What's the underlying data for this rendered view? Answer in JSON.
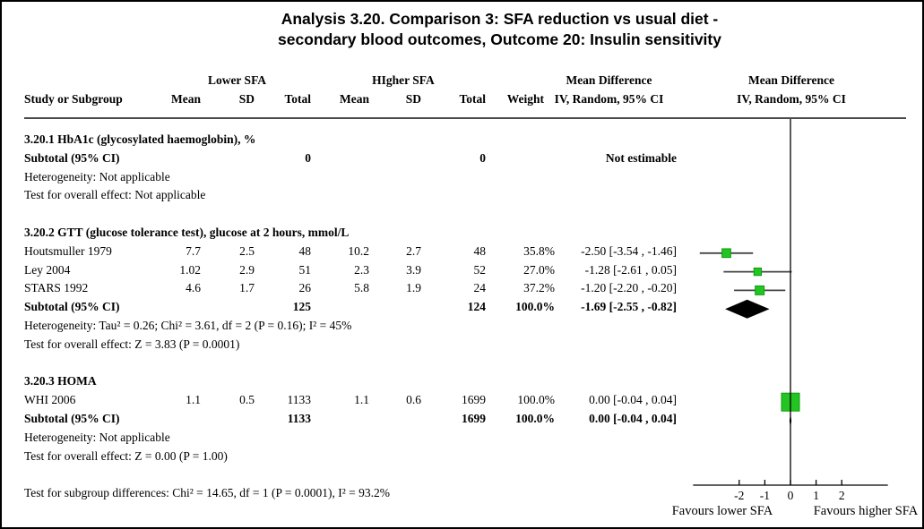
{
  "title": {
    "line1": "Analysis 3.20.   Comparison 3: SFA reduction vs usual diet -",
    "line2": "secondary blood outcomes, Outcome 20: Insulin sensitivity"
  },
  "header": {
    "group1": "Lower SFA",
    "group2": "HIgher SFA",
    "mean_diff_stats": "Mean Difference",
    "mean_diff_plot": "Mean Difference",
    "study": "Study or Subgroup",
    "mean1": "Mean",
    "sd1": "SD",
    "total1": "Total",
    "mean2": "Mean",
    "sd2": "SD",
    "total2": "Total",
    "weight": "Weight",
    "iv_random_stats": "IV, Random, 95% CI",
    "iv_random_plot": "IV, Random, 95% CI"
  },
  "colors": {
    "square_fill": "#22C522",
    "square_border": "#0E9B0E",
    "diamond": "#000000",
    "whisker": "#454545",
    "axis": "#000000"
  },
  "chart_data": {
    "type": "forest",
    "effect_label": "Mean Difference",
    "method_label": "IV, Random, 95% CI",
    "x_axis": {
      "ticks": [
        -2,
        -1,
        0,
        1,
        2
      ],
      "range": [
        -3.8,
        3.8
      ],
      "favours_left": "Favours lower SFA",
      "favours_right": "Favours higher SFA"
    },
    "rows": [
      {
        "type": "section",
        "text": "3.20.1 HbA1c (glycosylated haemoglobin), %"
      },
      {
        "type": "subtotal",
        "study": "Subtotal (95% CI)",
        "t1": "0",
        "t2": "0",
        "ci": "Not estimable"
      },
      {
        "type": "note",
        "text": "Heterogeneity: Not applicable"
      },
      {
        "type": "note",
        "text": "Test for overall effect: Not applicable"
      },
      {
        "type": "spacer"
      },
      {
        "type": "section",
        "text": "3.20.2 GTT (glucose tolerance test), glucose at 2 hours, mmol/L"
      },
      {
        "type": "study",
        "study": "Houtsmuller 1979",
        "m1": "7.7",
        "sd1": "2.5",
        "t1": "48",
        "m2": "10.2",
        "sd2": "2.7",
        "t2": "48",
        "w": "35.8%",
        "ci": "-2.50 [-3.54 , -1.46]",
        "plot": {
          "kind": "square",
          "est": -2.5,
          "lo": -3.54,
          "hi": -1.46,
          "weight_pct": 35.8
        }
      },
      {
        "type": "study",
        "study": "Ley 2004",
        "m1": "1.02",
        "sd1": "2.9",
        "t1": "51",
        "m2": "2.3",
        "sd2": "3.9",
        "t2": "52",
        "w": "27.0%",
        "ci": "-1.28 [-2.61 , 0.05]",
        "plot": {
          "kind": "square",
          "est": -1.28,
          "lo": -2.61,
          "hi": 0.05,
          "weight_pct": 27.0
        }
      },
      {
        "type": "study",
        "study": "STARS 1992",
        "m1": "4.6",
        "sd1": "1.7",
        "t1": "26",
        "m2": "5.8",
        "sd2": "1.9",
        "t2": "24",
        "w": "37.2%",
        "ci": "-1.20 [-2.20 , -0.20]",
        "plot": {
          "kind": "square",
          "est": -1.2,
          "lo": -2.2,
          "hi": -0.2,
          "weight_pct": 37.2
        }
      },
      {
        "type": "subtotal",
        "study": "Subtotal (95% CI)",
        "t1": "125",
        "t2": "124",
        "w": "100.0%",
        "ci": "-1.69 [-2.55 , -0.82]",
        "plot": {
          "kind": "diamond",
          "est": -1.69,
          "lo": -2.55,
          "hi": -0.82
        }
      },
      {
        "type": "note",
        "text": "Heterogeneity: Tau² = 0.26; Chi² = 3.61, df = 2 (P = 0.16); I² = 45%"
      },
      {
        "type": "note",
        "text": "Test for overall effect: Z = 3.83 (P = 0.0001)"
      },
      {
        "type": "spacer"
      },
      {
        "type": "section",
        "text": "3.20.3 HOMA"
      },
      {
        "type": "study",
        "study": "WHI 2006",
        "m1": "1.1",
        "sd1": "0.5",
        "t1": "1133",
        "m2": "1.1",
        "sd2": "0.6",
        "t2": "1699",
        "w": "100.0%",
        "ci": "0.00 [-0.04 , 0.04]",
        "plot": {
          "kind": "square",
          "est": 0.0,
          "lo": -0.04,
          "hi": 0.04,
          "weight_pct": 100.0
        }
      },
      {
        "type": "subtotal",
        "study": "Subtotal (95% CI)",
        "t1": "1133",
        "t2": "1699",
        "w": "100.0%",
        "ci": "0.00 [-0.04 , 0.04]",
        "plot": {
          "kind": "diamond",
          "est": 0.0,
          "lo": -0.04,
          "hi": 0.04
        }
      },
      {
        "type": "note",
        "text": "Heterogeneity: Not applicable"
      },
      {
        "type": "note",
        "text": "Test for overall effect: Z = 0.00 (P = 1.00)"
      },
      {
        "type": "spacer"
      },
      {
        "type": "note",
        "text": "Test for subgroup differences: Chi² = 14.65, df = 1 (P = 0.0001), I² = 93.2%"
      }
    ]
  }
}
